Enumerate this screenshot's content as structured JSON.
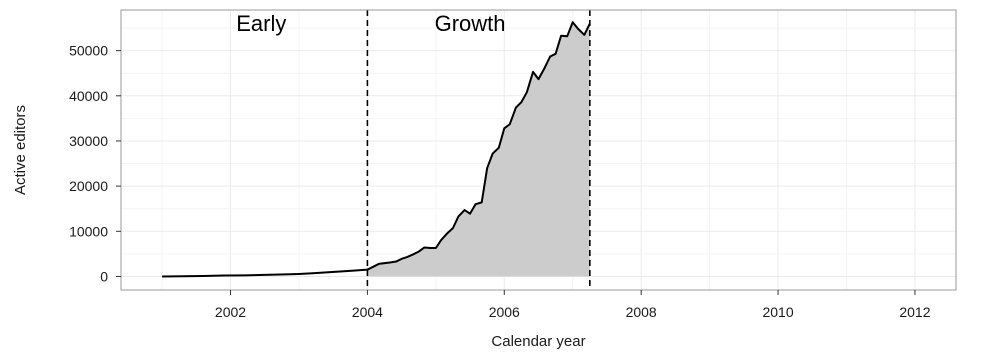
{
  "chart_data": {
    "type": "area",
    "title": "",
    "xlabel": "Calendar year",
    "ylabel": "Active editors",
    "xlim": [
      2000.4,
      2012.6
    ],
    "ylim": [
      -3000,
      59000
    ],
    "x_ticks": [
      2002,
      2004,
      2006,
      2008,
      2010,
      2012
    ],
    "y_ticks": [
      0,
      10000,
      20000,
      30000,
      40000,
      50000
    ],
    "grid": true,
    "colors": {
      "fill": "#cccccc",
      "line": "#000000",
      "grid": "#ebebeb"
    },
    "phases": [
      {
        "label": "Early",
        "start": 2000.4,
        "end": 2004.0
      },
      {
        "label": "Growth",
        "start": 2004.0,
        "end": 2007.25
      }
    ],
    "vlines": [
      2004.0,
      2007.25
    ],
    "shade_from": 2004.0,
    "series": [
      {
        "x": [
          2001.0,
          2001.3,
          2001.6,
          2001.9,
          2002.2,
          2002.5,
          2002.8,
          2003.0,
          2003.2,
          2003.4,
          2003.6,
          2003.8,
          2004.0,
          2004.17,
          2004.33,
          2004.42,
          2004.5,
          2004.58,
          2004.67,
          2004.75,
          2004.83,
          2004.92,
          2005.0,
          2005.08,
          2005.17,
          2005.25,
          2005.33,
          2005.42,
          2005.5,
          2005.58,
          2005.67,
          2005.75,
          2005.83,
          2005.92,
          2006.0,
          2006.08,
          2006.17,
          2006.25,
          2006.33,
          2006.42,
          2006.5,
          2006.58,
          2006.67,
          2006.75,
          2006.83,
          2006.92,
          2007.0,
          2007.08,
          2007.17,
          2007.25
        ],
        "y": [
          0,
          50,
          100,
          200,
          250,
          350,
          450,
          550,
          700,
          900,
          1100,
          1300,
          1500,
          2800,
          3100,
          3300,
          3900,
          4300,
          4900,
          5500,
          6400,
          6300,
          6300,
          8100,
          9600,
          10700,
          13300,
          14700,
          13900,
          16000,
          16400,
          24000,
          27200,
          28500,
          32800,
          33700,
          37400,
          38600,
          40800,
          45300,
          43700,
          45900,
          48700,
          49300,
          53300,
          53200,
          56300,
          54800,
          53500,
          56000
        ]
      }
    ]
  }
}
